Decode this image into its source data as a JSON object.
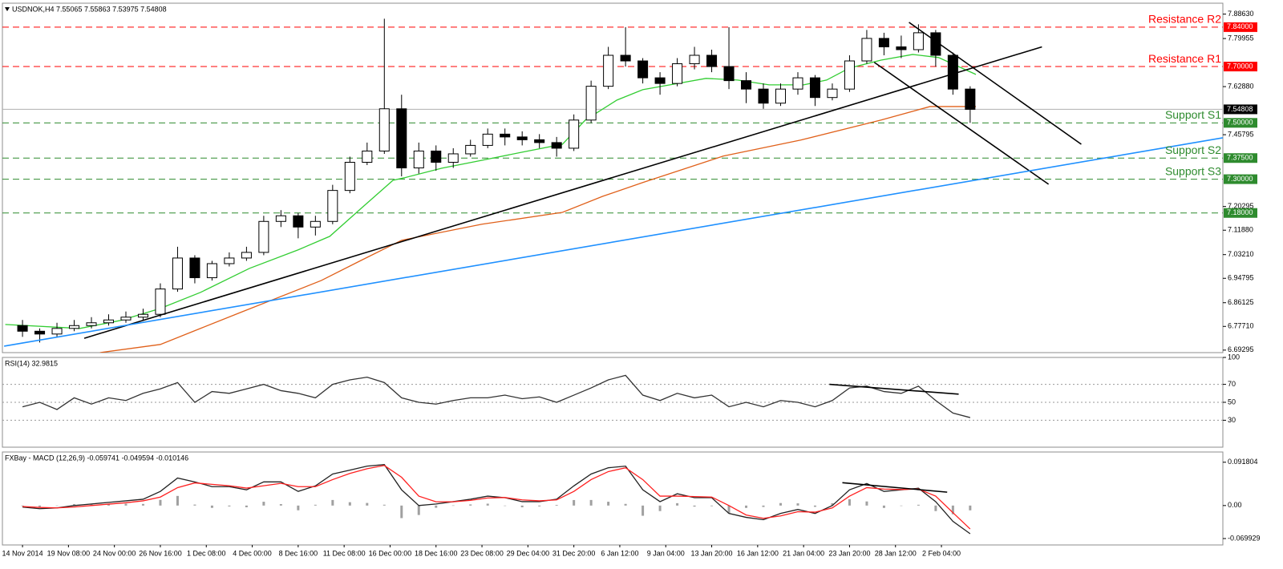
{
  "chart_data": [
    {
      "type": "candlestick",
      "title": "USDNOK,H4  7.55065 7.55863 7.53975 7.54808",
      "xlim": [
        -7,
        418
      ],
      "ylim": [
        6.684,
        7.925
      ],
      "yticks": [
        {
          "value": 7.8863,
          "label": "7.88630"
        },
        {
          "value": 7.79955,
          "label": "7.79955"
        },
        {
          "value": 7.6288,
          "label": "7.62880"
        },
        {
          "value": 7.45795,
          "label": "7.45795"
        },
        {
          "value": 7.20295,
          "label": "7.20295"
        },
        {
          "value": 7.1188,
          "label": "7.11880"
        },
        {
          "value": 7.0321,
          "label": "7.03210"
        },
        {
          "value": 6.94795,
          "label": "6.94795"
        },
        {
          "value": 6.86125,
          "label": "6.86125"
        },
        {
          "value": 6.7771,
          "label": "6.77710"
        },
        {
          "value": 6.69295,
          "label": "6.69295"
        }
      ],
      "x": [
        0,
        6,
        12,
        18,
        24,
        30,
        36,
        42,
        48,
        54,
        60,
        66,
        72,
        78,
        84,
        90,
        96,
        102,
        108,
        114,
        120,
        126,
        132,
        138,
        144,
        150,
        156,
        162,
        168,
        174,
        180,
        186,
        192,
        198,
        204,
        210,
        216,
        222,
        228,
        234,
        240,
        246,
        252,
        258,
        264,
        270,
        276,
        282,
        288,
        294,
        300,
        306,
        312,
        318,
        324,
        330
      ],
      "open": [
        6.78,
        6.76,
        6.75,
        6.77,
        6.78,
        6.79,
        6.8,
        6.81,
        6.82,
        6.91,
        7.02,
        6.95,
        7.0,
        7.02,
        7.04,
        7.15,
        7.17,
        7.13,
        7.15,
        7.26,
        7.36,
        7.4,
        7.55,
        7.34,
        7.4,
        7.36,
        7.39,
        7.42,
        7.46,
        7.45,
        7.44,
        7.43,
        7.41,
        7.51,
        7.63,
        7.74,
        7.72,
        7.66,
        7.64,
        7.71,
        7.74,
        7.7,
        7.65,
        7.62,
        7.57,
        7.62,
        7.66,
        7.59,
        7.62,
        7.72,
        7.8,
        7.77,
        7.76,
        7.82,
        7.74,
        7.62
      ],
      "high": [
        6.8,
        6.77,
        6.79,
        6.8,
        6.81,
        6.82,
        6.83,
        6.84,
        6.93,
        7.06,
        7.03,
        7.01,
        7.04,
        7.06,
        7.17,
        7.19,
        7.18,
        7.17,
        7.28,
        7.38,
        7.43,
        7.87,
        7.6,
        7.43,
        7.42,
        7.41,
        7.44,
        7.48,
        7.48,
        7.47,
        7.46,
        7.45,
        7.53,
        7.65,
        7.77,
        7.84,
        7.73,
        7.68,
        7.73,
        7.77,
        7.76,
        7.84,
        7.68,
        7.64,
        7.64,
        7.68,
        7.67,
        7.64,
        7.74,
        7.83,
        7.82,
        7.81,
        7.85,
        7.83,
        7.75,
        7.63
      ],
      "low": [
        6.74,
        6.72,
        6.74,
        6.76,
        6.77,
        6.78,
        6.79,
        6.8,
        6.81,
        6.9,
        6.93,
        6.94,
        6.99,
        7.01,
        7.03,
        7.13,
        7.09,
        7.1,
        7.14,
        7.25,
        7.35,
        7.39,
        7.31,
        7.32,
        7.33,
        7.34,
        7.38,
        7.41,
        7.42,
        7.42,
        7.41,
        7.38,
        7.4,
        7.5,
        7.62,
        7.7,
        7.64,
        7.6,
        7.63,
        7.69,
        7.68,
        7.62,
        7.57,
        7.55,
        7.56,
        7.6,
        7.56,
        7.58,
        7.61,
        7.71,
        7.74,
        7.73,
        7.75,
        7.7,
        7.6,
        7.5
      ],
      "close": [
        6.76,
        6.75,
        6.77,
        6.78,
        6.79,
        6.8,
        6.81,
        6.82,
        6.91,
        7.02,
        6.95,
        7.0,
        7.02,
        7.04,
        7.15,
        7.17,
        7.13,
        7.15,
        7.26,
        7.36,
        7.4,
        7.55,
        7.34,
        7.4,
        7.36,
        7.39,
        7.42,
        7.46,
        7.45,
        7.44,
        7.43,
        7.41,
        7.51,
        7.63,
        7.74,
        7.72,
        7.66,
        7.64,
        7.71,
        7.74,
        7.7,
        7.65,
        7.62,
        7.57,
        7.62,
        7.66,
        7.59,
        7.62,
        7.72,
        7.8,
        7.77,
        7.76,
        7.82,
        7.74,
        7.62,
        7.548
      ],
      "up_color": "#ffffff",
      "down_color": "#000000",
      "series": [
        {
          "color": "#32cd32",
          "x": [
            -6,
            20,
            34,
            48,
            62,
            79,
            96,
            107,
            118,
            129,
            133,
            146,
            160,
            174,
            188,
            196,
            207,
            216,
            227,
            238,
            249,
            260,
            272,
            280,
            288,
            299,
            310,
            319,
            332
          ],
          "values": [
            6.784,
            6.77,
            6.798,
            6.841,
            6.898,
            6.983,
            7.049,
            7.097,
            7.197,
            7.296,
            7.305,
            7.339,
            7.367,
            7.396,
            7.424,
            7.51,
            7.581,
            7.618,
            7.638,
            7.658,
            7.652,
            7.635,
            7.635,
            7.652,
            7.695,
            7.723,
            7.743,
            7.732,
            7.672
          ]
        },
        {
          "color": "#e0601a",
          "x": [
            27,
            48,
            62,
            76,
            104,
            118,
            132,
            160,
            188,
            202,
            216,
            244,
            271,
            299,
            316,
            332
          ],
          "values": [
            6.684,
            6.713,
            6.77,
            6.827,
            6.94,
            7.012,
            7.083,
            7.14,
            7.182,
            7.239,
            7.288,
            7.382,
            7.439,
            7.51,
            7.558,
            7.558
          ]
        }
      ],
      "levels": [
        {
          "value": 7.84,
          "label": "7.84000",
          "name": "Resistance R2",
          "color": "#ff0000"
        },
        {
          "value": 7.7,
          "label": "7.70000",
          "name": "Resistance R1",
          "color": "#ff0000"
        },
        {
          "value": 7.5,
          "label": "7.50000",
          "name": "Support S1",
          "color": "#2e8b2e"
        },
        {
          "value": 7.375,
          "label": "7.37500",
          "name": "Support S2",
          "color": "#2e8b2e"
        },
        {
          "value": 7.3,
          "label": "7.30000",
          "name": "Support S3",
          "color": "#2e8b2e"
        },
        {
          "value": 7.18,
          "label": "7.18000",
          "color": "#2e8b2e"
        }
      ],
      "last_price": 7.54808,
      "trendlines": [
        {
          "x": [
            21.5,
            355
          ],
          "values": [
            6.735,
            7.77
          ],
          "color": "#000000"
        },
        {
          "x": [
            308.7,
            368.7
          ],
          "values": [
            7.857,
            7.424
          ],
          "color": "#000000"
        },
        {
          "x": [
            296.6,
            357.3
          ],
          "values": [
            7.715,
            7.282
          ],
          "color": "#000000"
        },
        {
          "x": [
            -6.4,
            418
          ],
          "values": [
            6.707,
            7.447
          ],
          "color": "#1e90ff"
        }
      ]
    },
    {
      "type": "line",
      "title": "RSI(14) 32.9815",
      "xlim": [
        -7,
        418
      ],
      "ylim": [
        0,
        100
      ],
      "yticks": [
        30,
        50,
        70,
        100
      ],
      "levels": [
        30,
        50,
        70
      ],
      "x": [
        0,
        6,
        12,
        18,
        24,
        30,
        36,
        42,
        48,
        54,
        60,
        66,
        72,
        78,
        84,
        90,
        96,
        102,
        108,
        114,
        120,
        126,
        132,
        138,
        144,
        150,
        156,
        162,
        168,
        174,
        180,
        186,
        192,
        198,
        204,
        210,
        216,
        222,
        228,
        234,
        240,
        246,
        252,
        258,
        264,
        270,
        276,
        282,
        288,
        294,
        300,
        306,
        312,
        318,
        324,
        330
      ],
      "values": [
        45,
        50,
        42,
        55,
        48,
        55,
        52,
        60,
        65,
        72,
        50,
        62,
        60,
        65,
        70,
        63,
        60,
        55,
        70,
        75,
        78,
        72,
        55,
        50,
        48,
        52,
        55,
        55,
        58,
        54,
        56,
        50,
        58,
        66,
        75,
        80,
        58,
        52,
        60,
        55,
        58,
        45,
        50,
        45,
        52,
        50,
        45,
        52,
        66,
        68,
        62,
        60,
        68,
        52,
        38,
        32.98
      ],
      "color": "#333333",
      "trendlines": [
        {
          "x": [
            281,
            326
          ],
          "values": [
            70,
            59.1
          ],
          "color": "#000000"
        }
      ]
    },
    {
      "type": "macd",
      "title": "FXBay - MACD (12,26,9) -0.059741 -0.049594 -0.010146",
      "xlim": [
        -7,
        418
      ],
      "ylim": [
        -0.0835,
        0.1135
      ],
      "yticks": [
        0.091804,
        {
          "value": 0,
          "label": "0.00"
        },
        -0.069929
      ],
      "x": [
        0,
        6,
        12,
        18,
        24,
        30,
        36,
        42,
        48,
        54,
        60,
        66,
        72,
        78,
        84,
        90,
        96,
        102,
        108,
        114,
        120,
        126,
        132,
        138,
        144,
        150,
        156,
        162,
        168,
        174,
        180,
        186,
        192,
        198,
        204,
        210,
        216,
        222,
        228,
        234,
        240,
        246,
        252,
        258,
        264,
        270,
        276,
        282,
        288,
        294,
        300,
        306,
        312,
        318,
        324,
        330
      ],
      "histogram": {
        "color": "#a0a0a0",
        "values": [
          -0.0013,
          -0.0027,
          0,
          0.003,
          0.0033,
          0.0037,
          0.004,
          0.0034,
          0.012,
          0.0204,
          0.0021,
          -0.0049,
          -0.0019,
          -0.0036,
          0.0081,
          0.0031,
          -0.01,
          0.0017,
          0.0118,
          0.0071,
          0.0055,
          0.0018,
          -0.0266,
          -0.02,
          -0.0047,
          0.0003,
          0.0024,
          0.004,
          -0.0003,
          -0.0037,
          -0.0017,
          0.0014,
          0.0117,
          0.0118,
          0.0081,
          0.0035,
          -0.0216,
          -0.0117,
          0.005,
          -0.0023,
          -0.0013,
          -0.0167,
          -0.005,
          -0.003,
          0.0053,
          0.0047,
          -0.0027,
          0.005,
          0.0134,
          0.0087,
          -0.005,
          -0.0006,
          0.0017,
          -0.0117,
          -0.0184,
          -0.010146
        ]
      },
      "series": [
        {
          "color": "#222222",
          "values": [
            -0.0033,
            -0.0067,
            -0.005,
            0,
            0.0033,
            0.0067,
            0.01,
            0.0134,
            0.03,
            0.0584,
            0.0501,
            0.0401,
            0.0401,
            0.0334,
            0.0501,
            0.0501,
            0.03,
            0.0417,
            0.0668,
            0.0751,
            0.0835,
            0.0868,
            0.0334,
            0,
            0.0033,
            0.0083,
            0.0134,
            0.02,
            0.0167,
            0.0083,
            0.0083,
            0.0134,
            0.0417,
            0.0668,
            0.0801,
            0.0835,
            0.0334,
            0.0083,
            0.025,
            0.0167,
            0.0167,
            -0.0167,
            -0.025,
            -0.03,
            -0.0167,
            -0.0083,
            -0.0167,
            0,
            0.0334,
            0.0467,
            0.03,
            0.0334,
            0.0367,
            0.0083,
            -0.0334,
            -0.059741
          ]
        },
        {
          "color": "#ff2020",
          "values": [
            -0.002,
            -0.004,
            -0.005,
            -0.003,
            0,
            0.003,
            0.006,
            0.01,
            0.018,
            0.038,
            0.048,
            0.045,
            0.042,
            0.037,
            0.042,
            0.047,
            0.04,
            0.04,
            0.055,
            0.068,
            0.078,
            0.085,
            0.06,
            0.02,
            0.008,
            0.008,
            0.011,
            0.016,
            0.017,
            0.012,
            0.01,
            0.012,
            0.03,
            0.055,
            0.072,
            0.08,
            0.055,
            0.02,
            0.02,
            0.019,
            0.018,
            0,
            -0.02,
            -0.027,
            -0.022,
            -0.013,
            -0.014,
            -0.005,
            0.02,
            0.038,
            0.035,
            0.034,
            0.035,
            0.02,
            -0.015,
            -0.049594
          ]
        }
      ],
      "trendlines": [
        {
          "x": [
            285.5,
            322
          ],
          "values": [
            0.0484,
            0.0284
          ],
          "color": "#000000"
        }
      ],
      "xticks": [
        {
          "value": 0,
          "label": "14 Nov 2014"
        },
        {
          "value": 16,
          "label": "19 Nov 08:00"
        },
        {
          "value": 32,
          "label": "24 Nov 00:00"
        },
        {
          "value": 48,
          "label": "26 Nov 16:00"
        },
        {
          "value": 64,
          "label": "1 Dec 08:00"
        },
        {
          "value": 80,
          "label": "4 Dec 00:00"
        },
        {
          "value": 96,
          "label": "8 Dec 16:00"
        },
        {
          "value": 112,
          "label": "11 Dec 08:00"
        },
        {
          "value": 128,
          "label": "16 Dec 00:00"
        },
        {
          "value": 144,
          "label": "18 Dec 16:00"
        },
        {
          "value": 160,
          "label": "23 Dec 08:00"
        },
        {
          "value": 176,
          "label": "29 Dec 04:00"
        },
        {
          "value": 192,
          "label": "31 Dec 20:00"
        },
        {
          "value": 208,
          "label": "6 Jan 12:00"
        },
        {
          "value": 224,
          "label": "9 Jan 04:00"
        },
        {
          "value": 240,
          "label": "13 Jan 20:00"
        },
        {
          "value": 256,
          "label": "16 Jan 12:00"
        },
        {
          "value": 272,
          "label": "21 Jan 04:00"
        },
        {
          "value": 288,
          "label": "23 Jan 20:00"
        },
        {
          "value": 304,
          "label": "28 Jan 12:00"
        },
        {
          "value": 320,
          "label": "2 Feb 04:00"
        }
      ]
    }
  ]
}
